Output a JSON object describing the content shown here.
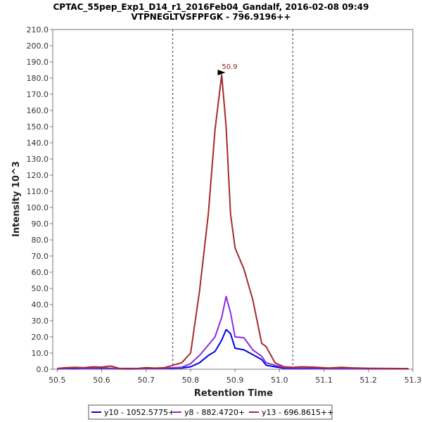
{
  "chart_data": {
    "type": "line",
    "title": "CPTAC_55pep_Exp1_D14_r1_2016Feb04_Gandalf, 2016-02-08 09:49",
    "subtitle": "VTPNEGLTVSFPFGK - 796.9196++",
    "xlabel": "Retention Time",
    "ylabel": "Intensity 10^3",
    "xlim": [
      50.49,
      51.3
    ],
    "ylim": [
      0,
      210
    ],
    "x_ticks": [
      "50.5",
      "50.6",
      "50.7",
      "50.8",
      "50.9",
      "51.0",
      "51.1",
      "51.2",
      "51.3"
    ],
    "y_ticks": [
      "0.0",
      "10.0",
      "20.0",
      "30.0",
      "40.0",
      "50.0",
      "60.0",
      "70.0",
      "80.0",
      "90.0",
      "100.0",
      "110.0",
      "120.0",
      "130.0",
      "140.0",
      "150.0",
      "160.0",
      "170.0",
      "180.0",
      "190.0",
      "200.0",
      "210.0"
    ],
    "grid": false,
    "legend_position": "bottom",
    "boundary_lines": [
      50.76,
      51.03
    ],
    "peak_annotation": {
      "label": "50.9",
      "x": 50.88,
      "y": 183,
      "color": "#8b1a1a"
    },
    "series": [
      {
        "name": "y10 - 1052.5775+",
        "color": "#0000ee",
        "x": [
          50.5,
          50.52,
          50.54,
          50.56,
          50.58,
          50.6,
          50.62,
          50.64,
          50.66,
          50.68,
          50.7,
          50.72,
          50.74,
          50.76,
          50.78,
          50.8,
          50.82,
          50.84,
          50.855,
          50.87,
          50.88,
          50.89,
          50.9,
          50.92,
          50.94,
          50.96,
          50.97,
          50.99,
          51.01,
          51.03,
          51.05,
          51.08,
          51.11,
          51.14,
          51.17,
          51.2,
          51.25,
          51.29
        ],
        "y": [
          0.2,
          0.5,
          0.4,
          0.5,
          0.6,
          0.7,
          0.5,
          0.3,
          0.2,
          0.3,
          0.5,
          0.4,
          0.5,
          0.6,
          0.8,
          1.5,
          4.0,
          8.5,
          11.0,
          18.0,
          24.5,
          22.0,
          13.0,
          12.0,
          9.0,
          6.0,
          2.5,
          1.5,
          0.6,
          0.5,
          0.4,
          0.5,
          0.4,
          0.3,
          0.3,
          0.3,
          0.3,
          0.3
        ]
      },
      {
        "name": "y8 - 882.4720+",
        "color": "#8b2be2",
        "x": [
          50.5,
          50.52,
          50.54,
          50.56,
          50.58,
          50.6,
          50.62,
          50.64,
          50.66,
          50.68,
          50.7,
          50.72,
          50.74,
          50.76,
          50.78,
          50.8,
          50.82,
          50.84,
          50.855,
          50.87,
          50.88,
          50.89,
          50.9,
          50.92,
          50.94,
          50.96,
          50.97,
          50.99,
          51.01,
          51.03,
          51.05,
          51.08,
          51.11,
          51.14,
          51.17,
          51.2,
          51.25,
          51.29
        ],
        "y": [
          0.3,
          0.6,
          0.8,
          0.5,
          0.8,
          1.0,
          0.6,
          0.3,
          0.5,
          0.3,
          0.6,
          0.5,
          0.6,
          1.0,
          1.2,
          3.5,
          8.5,
          15.0,
          20.0,
          32.0,
          45.0,
          35.0,
          20.0,
          19.5,
          12.0,
          8.0,
          4.0,
          2.5,
          1.0,
          0.8,
          0.6,
          0.8,
          0.5,
          0.5,
          0.4,
          0.4,
          0.3,
          0.3
        ]
      },
      {
        "name": "y13 - 696.8615++",
        "color": "#a52a2a",
        "x": [
          50.5,
          50.52,
          50.54,
          50.56,
          50.58,
          50.6,
          50.62,
          50.64,
          50.66,
          50.68,
          50.7,
          50.72,
          50.74,
          50.76,
          50.78,
          50.8,
          50.82,
          50.84,
          50.855,
          50.87,
          50.88,
          50.89,
          50.9,
          50.92,
          50.94,
          50.96,
          50.97,
          50.99,
          51.01,
          51.03,
          51.05,
          51.08,
          51.11,
          51.14,
          51.17,
          51.2,
          51.25,
          51.29
        ],
        "y": [
          0.5,
          1.0,
          1.2,
          1.0,
          1.5,
          1.3,
          2.0,
          0.5,
          0.5,
          0.5,
          1.0,
          0.7,
          0.9,
          2.5,
          4.0,
          10.0,
          48.0,
          96.0,
          148.0,
          182.0,
          150.0,
          96.0,
          75.0,
          62.0,
          43.0,
          16.0,
          14.0,
          4.0,
          1.5,
          1.2,
          1.5,
          1.3,
          0.8,
          1.2,
          0.8,
          0.6,
          0.5,
          0.4
        ]
      }
    ]
  }
}
